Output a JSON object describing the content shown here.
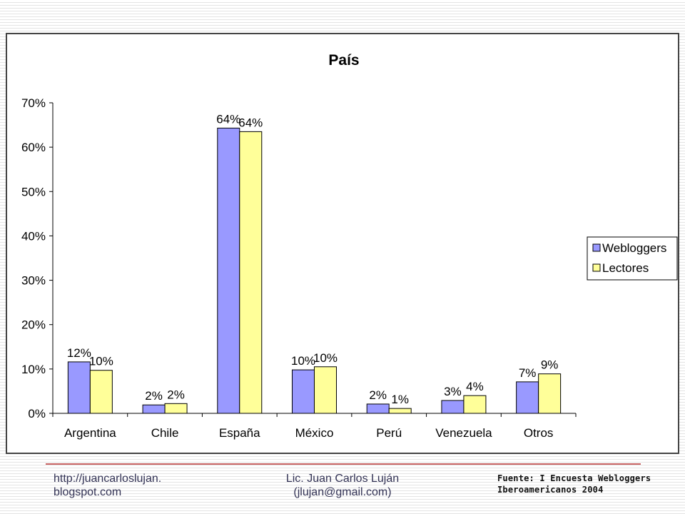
{
  "chart_data": {
    "type": "bar",
    "title": "País",
    "categories": [
      "Argentina",
      "Chile",
      "España",
      "México",
      "Perú",
      "Venezuela",
      "Otros"
    ],
    "series": [
      {
        "name": "Webloggers",
        "values": [
          11.6,
          1.9,
          64.3,
          9.8,
          2.1,
          2.9,
          7.1
        ],
        "labels": [
          "12%",
          "2%",
          "64%",
          "10%",
          "2%",
          "3%",
          "7%"
        ],
        "color": "#9999ff"
      },
      {
        "name": "Lectores",
        "values": [
          9.7,
          2.2,
          63.5,
          10.5,
          1.1,
          4.0,
          8.9
        ],
        "labels": [
          "10%",
          "2%",
          "64%",
          "10%",
          "1%",
          "4%",
          "9%"
        ],
        "color": "#ffff99"
      }
    ],
    "yticks": [
      "0%",
      "10%",
      "20%",
      "30%",
      "40%",
      "50%",
      "60%",
      "70%"
    ],
    "ylim": [
      0,
      70
    ],
    "xlabel": "",
    "ylabel": "",
    "grid": false,
    "legend_position": "right"
  },
  "footer": {
    "left_line1": "http://juancarloslujan.",
    "left_line2": "blogspot.com",
    "center_line1": "Lic. Juan Carlos Luján",
    "center_line2": "(jlujan@gmail.com)",
    "right_line1": "Fuente: I Encuesta Webloggers",
    "right_line2": "Iberoamericanos 2004"
  }
}
